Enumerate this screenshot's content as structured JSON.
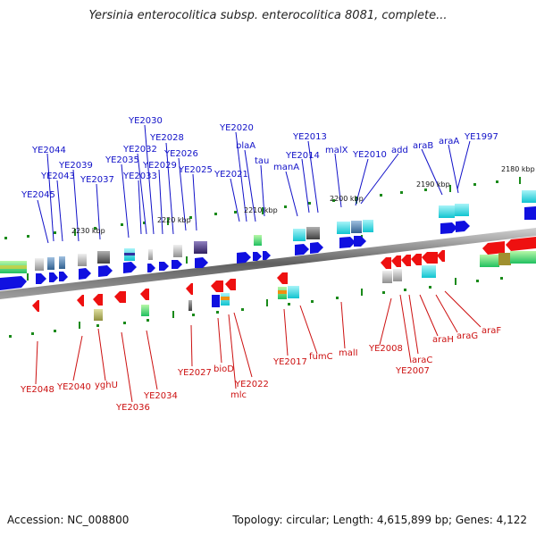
{
  "title": "Yersinia enterocolitica subsp. enterocolitica 8081, complete...",
  "accession": "Accession: NC_008800",
  "summary": "Topology: circular; Length: 4,615,899 bp; Genes: 4,122",
  "kbp_labels": [
    "2180 kbp",
    "2190 kbp",
    "2200 kbp",
    "2210 kbp",
    "2220 kbp",
    "2230 kbp"
  ],
  "forward_gene_labels": [
    "YE1997",
    "araA",
    "araB",
    "add",
    "YE2010",
    "malX",
    "YE2013",
    "YE2014",
    "manA",
    "tau",
    "blaA",
    "YE2020",
    "YE2021",
    "YE2025",
    "YE2026",
    "YE2028",
    "YE2029",
    "YE2030",
    "YE2032",
    "YE2033",
    "YE2035",
    "YE2037",
    "YE2039",
    "YE2043",
    "YE2044",
    "YE2045"
  ],
  "reverse_gene_labels": [
    "araF",
    "araG",
    "araH",
    "araC",
    "YE2007",
    "YE2008",
    "malI",
    "fumC",
    "YE2017",
    "YE2022",
    "mlc",
    "bioD",
    "YE2027",
    "YE2034",
    "YE2036",
    "yghU",
    "YE2040",
    "YE2048"
  ]
}
